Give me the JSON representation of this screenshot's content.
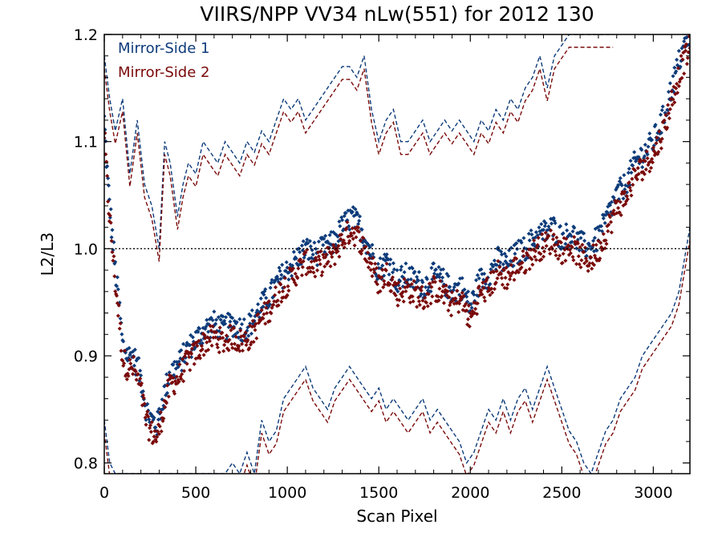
{
  "chart_data": {
    "type": "scatter",
    "title": "VIIRS/NPP VV34 nLw(551) for 2012 130",
    "xlabel": "Scan Pixel",
    "ylabel": "L2/L3",
    "xlim": [
      0,
      3200
    ],
    "ylim": [
      0.79,
      1.2
    ],
    "x_ticks": [
      0,
      500,
      1000,
      1500,
      2000,
      2500,
      3000
    ],
    "x_tick_labels": [
      "0",
      "500",
      "1000",
      "1500",
      "2000",
      "2500",
      "3000"
    ],
    "y_ticks": [
      0.8,
      0.9,
      1.0,
      1.1,
      1.2
    ],
    "y_tick_labels": [
      "0.8",
      "0.9",
      "1.0",
      "1.1",
      "1.2"
    ],
    "legend_position": "top-left",
    "grid": false,
    "reference_line": {
      "y": 1.0,
      "style": "dotted",
      "color": "#000000"
    },
    "colors": {
      "mirror_side_1": "#0d3b7a",
      "mirror_side_2": "#7a0a0a"
    },
    "series": [
      {
        "name": "Mirror-Side 1",
        "mean_points": {
          "x": [
            0,
            20,
            40,
            60,
            80,
            100,
            130,
            160,
            200,
            230,
            260,
            290,
            320,
            360,
            400,
            450,
            500,
            550,
            600,
            650,
            700,
            750,
            800,
            850,
            900,
            950,
            1000,
            1050,
            1100,
            1150,
            1200,
            1250,
            1300,
            1350,
            1400,
            1450,
            1500,
            1550,
            1600,
            1650,
            1700,
            1750,
            1800,
            1850,
            1900,
            1950,
            2000,
            2050,
            2100,
            2150,
            2200,
            2250,
            2300,
            2350,
            2400,
            2450,
            2500,
            2550,
            2600,
            2650,
            2700,
            2750,
            2800,
            2850,
            2900,
            2950,
            3000,
            3050,
            3100,
            3150,
            3200
          ],
          "y": [
            1.12,
            1.06,
            1.02,
            0.98,
            0.95,
            0.91,
            0.9,
            0.9,
            0.88,
            0.85,
            0.84,
            0.835,
            0.86,
            0.885,
            0.89,
            0.905,
            0.915,
            0.925,
            0.93,
            0.925,
            0.93,
            0.925,
            0.93,
            0.945,
            0.955,
            0.97,
            0.98,
            0.99,
            1.0,
            0.995,
            1.0,
            1.005,
            1.02,
            1.03,
            1.02,
            1.0,
            0.98,
            0.99,
            0.97,
            0.975,
            0.97,
            0.965,
            0.975,
            0.97,
            0.96,
            0.965,
            0.945,
            0.97,
            0.975,
            0.99,
            0.985,
            0.995,
            1.0,
            1.01,
            1.015,
            1.02,
            1.01,
            1.015,
            1.005,
            1.0,
            1.01,
            1.03,
            1.05,
            1.06,
            1.08,
            1.09,
            1.1,
            1.12,
            1.15,
            1.18,
            1.2
          ]
        },
        "upper_bound": {
          "x": [
            0,
            30,
            60,
            100,
            140,
            180,
            220,
            260,
            300,
            330,
            360,
            400,
            430,
            460,
            500,
            540,
            580,
            620,
            660,
            700,
            740,
            780,
            820,
            860,
            900,
            940,
            980,
            1020,
            1060,
            1100,
            1140,
            1180,
            1220,
            1260,
            1300,
            1340,
            1380,
            1420,
            1460,
            1500,
            1540,
            1580,
            1620,
            1660,
            1700,
            1740,
            1780,
            1820,
            1860,
            1900,
            1940,
            1980,
            2020,
            2060,
            2100,
            2140,
            2180,
            2220,
            2260,
            2300,
            2340,
            2380,
            2420,
            2460,
            2500,
            2540,
            2580,
            2620,
            2660,
            2700,
            2740,
            2780
          ],
          "y": [
            1.18,
            1.14,
            1.11,
            1.14,
            1.07,
            1.12,
            1.06,
            1.04,
            1.0,
            1.1,
            1.08,
            1.03,
            1.06,
            1.08,
            1.07,
            1.1,
            1.09,
            1.08,
            1.1,
            1.09,
            1.08,
            1.1,
            1.09,
            1.11,
            1.1,
            1.12,
            1.14,
            1.13,
            1.14,
            1.12,
            1.13,
            1.14,
            1.15,
            1.16,
            1.17,
            1.17,
            1.16,
            1.18,
            1.13,
            1.1,
            1.12,
            1.13,
            1.1,
            1.1,
            1.11,
            1.12,
            1.1,
            1.11,
            1.12,
            1.11,
            1.12,
            1.11,
            1.1,
            1.12,
            1.11,
            1.13,
            1.12,
            1.14,
            1.13,
            1.15,
            1.16,
            1.18,
            1.15,
            1.18,
            1.19,
            1.2,
            1.2,
            1.2,
            1.2,
            1.2,
            1.2,
            1.2
          ]
        },
        "lower_bound": {
          "x": [
            0,
            30,
            60,
            100,
            140,
            180,
            220,
            260,
            300,
            340,
            380,
            420,
            460,
            500,
            540,
            580,
            620,
            660,
            700,
            740,
            780,
            820,
            860,
            900,
            940,
            980,
            1020,
            1060,
            1100,
            1140,
            1180,
            1220,
            1260,
            1300,
            1340,
            1380,
            1420,
            1460,
            1500,
            1540,
            1580,
            1620,
            1660,
            1700,
            1740,
            1780,
            1820,
            1860,
            1900,
            1940,
            1980,
            2020,
            2060,
            2100,
            2140,
            2180,
            2220,
            2260,
            2300,
            2340,
            2380,
            2420,
            2460,
            2500,
            2540,
            2580,
            2620,
            2660,
            2700,
            2740,
            2780,
            2820,
            2860,
            2900,
            2940,
            2980,
            3020,
            3060,
            3100,
            3140,
            3180,
            3200
          ],
          "y": [
            0.84,
            0.8,
            0.79,
            0.79,
            0.79,
            0.79,
            0.79,
            0.79,
            0.79,
            0.79,
            0.79,
            0.79,
            0.79,
            0.79,
            0.79,
            0.79,
            0.79,
            0.79,
            0.8,
            0.79,
            0.81,
            0.79,
            0.84,
            0.82,
            0.83,
            0.86,
            0.87,
            0.88,
            0.89,
            0.87,
            0.86,
            0.85,
            0.87,
            0.88,
            0.89,
            0.88,
            0.87,
            0.86,
            0.87,
            0.85,
            0.86,
            0.85,
            0.84,
            0.85,
            0.86,
            0.84,
            0.85,
            0.84,
            0.83,
            0.82,
            0.8,
            0.81,
            0.83,
            0.85,
            0.84,
            0.86,
            0.84,
            0.86,
            0.87,
            0.85,
            0.87,
            0.89,
            0.87,
            0.85,
            0.83,
            0.82,
            0.8,
            0.79,
            0.81,
            0.83,
            0.84,
            0.86,
            0.87,
            0.88,
            0.9,
            0.91,
            0.92,
            0.93,
            0.94,
            0.96,
            1.0,
            1.02
          ]
        }
      },
      {
        "name": "Mirror-Side 2",
        "offset_from_mirror_side_1": -0.012
      }
    ]
  },
  "legend": {
    "mirror_side_1": "Mirror-Side 1",
    "mirror_side_2": "Mirror-Side 2"
  }
}
